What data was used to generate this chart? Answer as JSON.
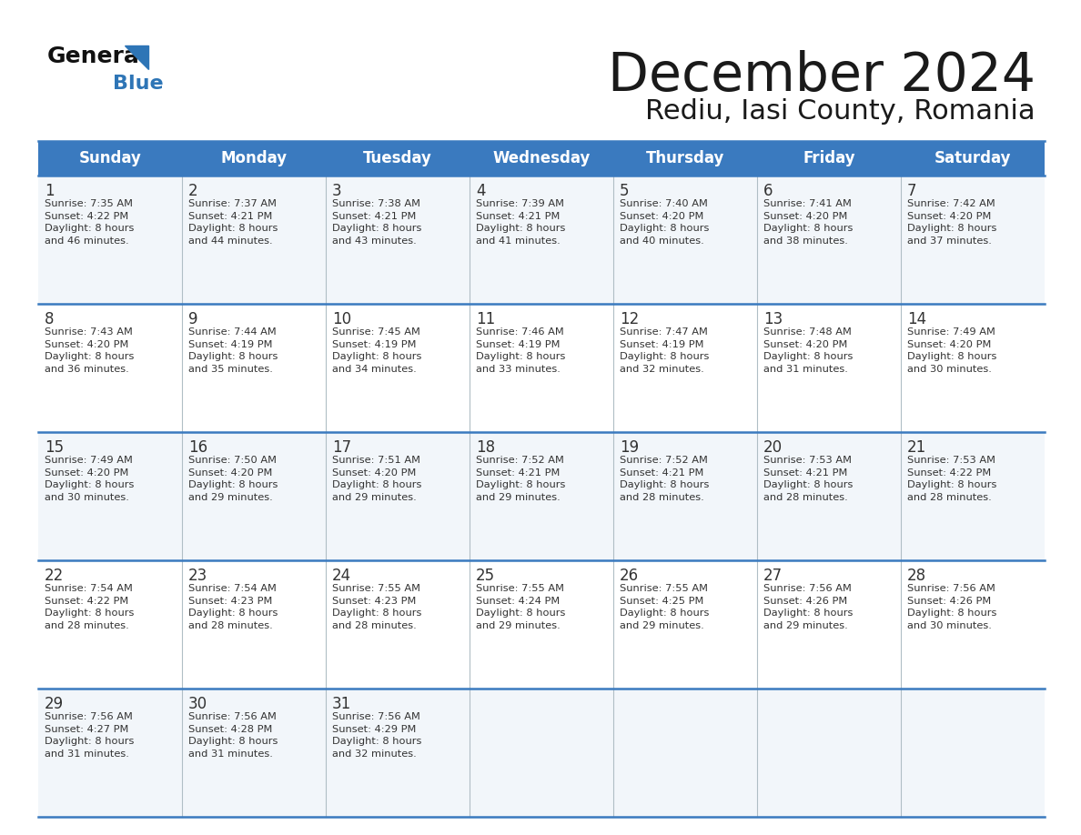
{
  "title": "December 2024",
  "subtitle": "Rediu, Iasi County, Romania",
  "header_bg_color": "#3a7abf",
  "header_text_color": "#ffffff",
  "days_of_week": [
    "Sunday",
    "Monday",
    "Tuesday",
    "Wednesday",
    "Thursday",
    "Friday",
    "Saturday"
  ],
  "row_bg_color_odd": "#f2f6fa",
  "row_bg_color_even": "#ffffff",
  "cell_border_color": "#3a7abf",
  "title_color": "#1a1a1a",
  "subtitle_color": "#1a1a1a",
  "day_num_color": "#333333",
  "cell_text_color": "#333333",
  "calendar_data": [
    [
      {
        "day": 1,
        "sunrise": "7:35 AM",
        "sunset": "4:22 PM",
        "daylight_hrs": 8,
        "daylight_min": 46
      },
      {
        "day": 2,
        "sunrise": "7:37 AM",
        "sunset": "4:21 PM",
        "daylight_hrs": 8,
        "daylight_min": 44
      },
      {
        "day": 3,
        "sunrise": "7:38 AM",
        "sunset": "4:21 PM",
        "daylight_hrs": 8,
        "daylight_min": 43
      },
      {
        "day": 4,
        "sunrise": "7:39 AM",
        "sunset": "4:21 PM",
        "daylight_hrs": 8,
        "daylight_min": 41
      },
      {
        "day": 5,
        "sunrise": "7:40 AM",
        "sunset": "4:20 PM",
        "daylight_hrs": 8,
        "daylight_min": 40
      },
      {
        "day": 6,
        "sunrise": "7:41 AM",
        "sunset": "4:20 PM",
        "daylight_hrs": 8,
        "daylight_min": 38
      },
      {
        "day": 7,
        "sunrise": "7:42 AM",
        "sunset": "4:20 PM",
        "daylight_hrs": 8,
        "daylight_min": 37
      }
    ],
    [
      {
        "day": 8,
        "sunrise": "7:43 AM",
        "sunset": "4:20 PM",
        "daylight_hrs": 8,
        "daylight_min": 36
      },
      {
        "day": 9,
        "sunrise": "7:44 AM",
        "sunset": "4:19 PM",
        "daylight_hrs": 8,
        "daylight_min": 35
      },
      {
        "day": 10,
        "sunrise": "7:45 AM",
        "sunset": "4:19 PM",
        "daylight_hrs": 8,
        "daylight_min": 34
      },
      {
        "day": 11,
        "sunrise": "7:46 AM",
        "sunset": "4:19 PM",
        "daylight_hrs": 8,
        "daylight_min": 33
      },
      {
        "day": 12,
        "sunrise": "7:47 AM",
        "sunset": "4:19 PM",
        "daylight_hrs": 8,
        "daylight_min": 32
      },
      {
        "day": 13,
        "sunrise": "7:48 AM",
        "sunset": "4:20 PM",
        "daylight_hrs": 8,
        "daylight_min": 31
      },
      {
        "day": 14,
        "sunrise": "7:49 AM",
        "sunset": "4:20 PM",
        "daylight_hrs": 8,
        "daylight_min": 30
      }
    ],
    [
      {
        "day": 15,
        "sunrise": "7:49 AM",
        "sunset": "4:20 PM",
        "daylight_hrs": 8,
        "daylight_min": 30
      },
      {
        "day": 16,
        "sunrise": "7:50 AM",
        "sunset": "4:20 PM",
        "daylight_hrs": 8,
        "daylight_min": 29
      },
      {
        "day": 17,
        "sunrise": "7:51 AM",
        "sunset": "4:20 PM",
        "daylight_hrs": 8,
        "daylight_min": 29
      },
      {
        "day": 18,
        "sunrise": "7:52 AM",
        "sunset": "4:21 PM",
        "daylight_hrs": 8,
        "daylight_min": 29
      },
      {
        "day": 19,
        "sunrise": "7:52 AM",
        "sunset": "4:21 PM",
        "daylight_hrs": 8,
        "daylight_min": 28
      },
      {
        "day": 20,
        "sunrise": "7:53 AM",
        "sunset": "4:21 PM",
        "daylight_hrs": 8,
        "daylight_min": 28
      },
      {
        "day": 21,
        "sunrise": "7:53 AM",
        "sunset": "4:22 PM",
        "daylight_hrs": 8,
        "daylight_min": 28
      }
    ],
    [
      {
        "day": 22,
        "sunrise": "7:54 AM",
        "sunset": "4:22 PM",
        "daylight_hrs": 8,
        "daylight_min": 28
      },
      {
        "day": 23,
        "sunrise": "7:54 AM",
        "sunset": "4:23 PM",
        "daylight_hrs": 8,
        "daylight_min": 28
      },
      {
        "day": 24,
        "sunrise": "7:55 AM",
        "sunset": "4:23 PM",
        "daylight_hrs": 8,
        "daylight_min": 28
      },
      {
        "day": 25,
        "sunrise": "7:55 AM",
        "sunset": "4:24 PM",
        "daylight_hrs": 8,
        "daylight_min": 29
      },
      {
        "day": 26,
        "sunrise": "7:55 AM",
        "sunset": "4:25 PM",
        "daylight_hrs": 8,
        "daylight_min": 29
      },
      {
        "day": 27,
        "sunrise": "7:56 AM",
        "sunset": "4:26 PM",
        "daylight_hrs": 8,
        "daylight_min": 29
      },
      {
        "day": 28,
        "sunrise": "7:56 AM",
        "sunset": "4:26 PM",
        "daylight_hrs": 8,
        "daylight_min": 30
      }
    ],
    [
      {
        "day": 29,
        "sunrise": "7:56 AM",
        "sunset": "4:27 PM",
        "daylight_hrs": 8,
        "daylight_min": 31
      },
      {
        "day": 30,
        "sunrise": "7:56 AM",
        "sunset": "4:28 PM",
        "daylight_hrs": 8,
        "daylight_min": 31
      },
      {
        "day": 31,
        "sunrise": "7:56 AM",
        "sunset": "4:29 PM",
        "daylight_hrs": 8,
        "daylight_min": 32
      },
      null,
      null,
      null,
      null
    ]
  ]
}
